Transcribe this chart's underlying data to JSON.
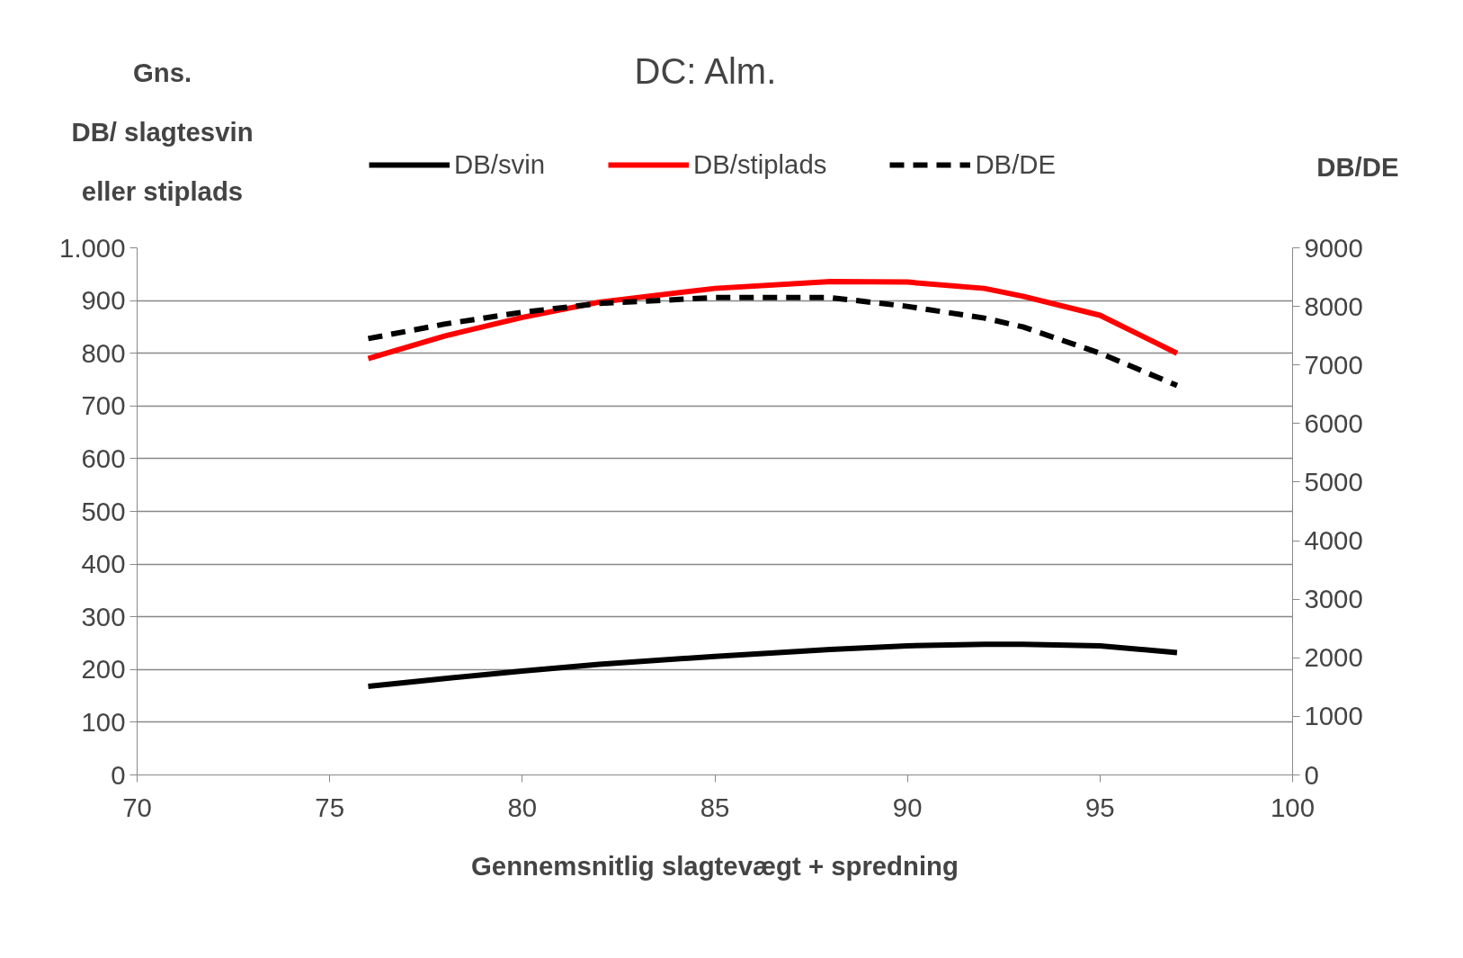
{
  "chart_data": {
    "type": "line",
    "title": "DC: Alm.",
    "xlabel": "Gennemsnitlig slagtevægt + spredning",
    "ylabel": "Gns.\nDB/ slagtesvin\neller stiplads",
    "y2label": "DB/DE",
    "x": [
      76,
      78,
      80,
      82,
      85,
      88,
      90,
      92,
      93,
      95,
      97
    ],
    "series": [
      {
        "name": "DB/svin",
        "color": "#000000",
        "line_style": "solid",
        "values": [
          168,
          183,
          197,
          210,
          225,
          238,
          245,
          248,
          248,
          245,
          232
        ]
      },
      {
        "name": "DB/stiplads",
        "color": "#ff0000",
        "line_style": "solid",
        "values": [
          790,
          833,
          868,
          897,
          923,
          936,
          935,
          923,
          908,
          872,
          800
        ]
      },
      {
        "name": "DB/DE",
        "color": "#000000",
        "line_style": "dashed",
        "axis": "y2",
        "values": [
          7450,
          7700,
          7900,
          8050,
          8150,
          8150,
          8000,
          7800,
          7650,
          7200,
          6650
        ]
      }
    ],
    "xlim": [
      70,
      100
    ],
    "xticks": [
      70,
      75,
      80,
      85,
      90,
      95,
      100
    ],
    "ylim": [
      0,
      1000
    ],
    "yticks": [
      0,
      100,
      200,
      300,
      400,
      500,
      600,
      700,
      800,
      900,
      {
        "value": 1000,
        "label": "1.000"
      }
    ],
    "y2lim": [
      0,
      9000
    ],
    "y2ticks": [
      0,
      1000,
      2000,
      3000,
      4000,
      5000,
      6000,
      7000,
      8000,
      9000
    ],
    "grid": "y",
    "legend": "top",
    "marker": "none"
  }
}
